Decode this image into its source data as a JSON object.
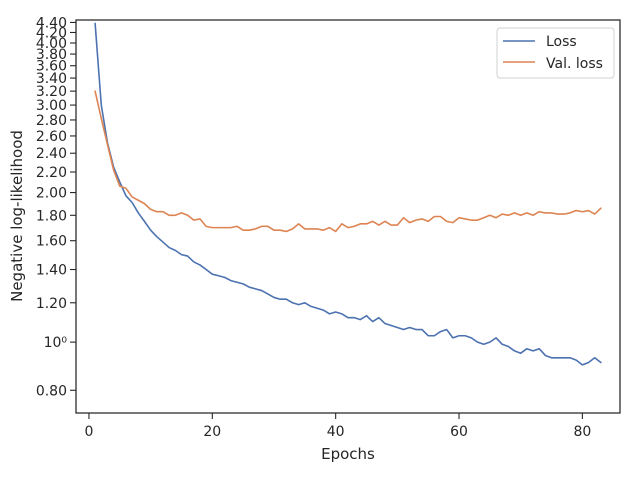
{
  "chart_data": {
    "type": "line",
    "title": "",
    "xlabel": "Epochs",
    "ylabel": "Negative log-likelihood",
    "xlim": [
      -2.1,
      86.1
    ],
    "ylim": [
      0.72,
      4.45
    ],
    "yscale": "log",
    "grid": false,
    "legend_position": "top-right",
    "x_ticks": [
      0,
      20,
      40,
      60,
      80
    ],
    "y_ticks": [
      {
        "value": 0.8,
        "label": "0.80"
      },
      {
        "value": 1.0,
        "label": "10⁰"
      },
      {
        "value": 1.2,
        "label": "1.20"
      },
      {
        "value": 1.4,
        "label": "1.40"
      },
      {
        "value": 1.6,
        "label": "1.60"
      },
      {
        "value": 1.8,
        "label": "1.80"
      },
      {
        "value": 2.0,
        "label": "2.00"
      },
      {
        "value": 2.2,
        "label": "2.20"
      },
      {
        "value": 2.4,
        "label": "2.40"
      },
      {
        "value": 2.6,
        "label": "2.60"
      },
      {
        "value": 2.8,
        "label": "2.80"
      },
      {
        "value": 3.0,
        "label": "3.00"
      },
      {
        "value": 3.2,
        "label": "3.20"
      },
      {
        "value": 3.4,
        "label": "3.40"
      },
      {
        "value": 3.6,
        "label": "3.60"
      },
      {
        "value": 3.8,
        "label": "3.80"
      },
      {
        "value": 4.0,
        "label": "4.00"
      },
      {
        "value": 4.2,
        "label": "4.20"
      },
      {
        "value": 4.4,
        "label": "4.40"
      }
    ],
    "x": [
      1,
      2,
      3,
      4,
      5,
      6,
      7,
      8,
      9,
      10,
      11,
      12,
      13,
      14,
      15,
      16,
      17,
      18,
      19,
      20,
      21,
      22,
      23,
      24,
      25,
      26,
      27,
      28,
      29,
      30,
      31,
      32,
      33,
      34,
      35,
      36,
      37,
      38,
      39,
      40,
      41,
      42,
      43,
      44,
      45,
      46,
      47,
      48,
      49,
      50,
      51,
      52,
      53,
      54,
      55,
      56,
      57,
      58,
      59,
      60,
      61,
      62,
      63,
      64,
      65,
      66,
      67,
      68,
      69,
      70,
      71,
      72,
      73,
      74,
      75,
      76,
      77,
      78,
      79,
      80,
      81,
      82,
      83
    ],
    "series": [
      {
        "name": "Loss",
        "color": "#4c72b0",
        "values": [
          4.38,
          3.0,
          2.52,
          2.25,
          2.1,
          1.97,
          1.91,
          1.82,
          1.75,
          1.68,
          1.63,
          1.59,
          1.55,
          1.53,
          1.5,
          1.49,
          1.45,
          1.43,
          1.4,
          1.37,
          1.36,
          1.35,
          1.33,
          1.32,
          1.31,
          1.29,
          1.28,
          1.27,
          1.25,
          1.23,
          1.22,
          1.22,
          1.2,
          1.19,
          1.2,
          1.18,
          1.17,
          1.16,
          1.14,
          1.15,
          1.14,
          1.12,
          1.12,
          1.11,
          1.13,
          1.1,
          1.12,
          1.09,
          1.08,
          1.07,
          1.06,
          1.07,
          1.06,
          1.06,
          1.03,
          1.03,
          1.05,
          1.06,
          1.02,
          1.03,
          1.03,
          1.02,
          1.0,
          0.99,
          1.0,
          1.02,
          0.99,
          0.98,
          0.96,
          0.95,
          0.97,
          0.96,
          0.97,
          0.94,
          0.93,
          0.93,
          0.93,
          0.93,
          0.92,
          0.9,
          0.91,
          0.93,
          0.91
        ]
      },
      {
        "name": "Val. loss",
        "color": "#dd8452",
        "values": [
          3.2,
          2.82,
          2.5,
          2.22,
          2.06,
          2.04,
          1.96,
          1.93,
          1.9,
          1.85,
          1.83,
          1.83,
          1.8,
          1.8,
          1.82,
          1.8,
          1.76,
          1.77,
          1.71,
          1.7,
          1.7,
          1.7,
          1.7,
          1.71,
          1.68,
          1.68,
          1.69,
          1.71,
          1.71,
          1.68,
          1.68,
          1.67,
          1.69,
          1.73,
          1.69,
          1.69,
          1.69,
          1.68,
          1.7,
          1.67,
          1.73,
          1.7,
          1.71,
          1.73,
          1.73,
          1.75,
          1.72,
          1.75,
          1.72,
          1.72,
          1.78,
          1.74,
          1.76,
          1.77,
          1.75,
          1.79,
          1.79,
          1.75,
          1.74,
          1.78,
          1.77,
          1.76,
          1.76,
          1.78,
          1.8,
          1.78,
          1.81,
          1.8,
          1.82,
          1.8,
          1.82,
          1.8,
          1.83,
          1.82,
          1.82,
          1.81,
          1.81,
          1.82,
          1.84,
          1.83,
          1.84,
          1.81,
          1.86
        ]
      }
    ]
  }
}
